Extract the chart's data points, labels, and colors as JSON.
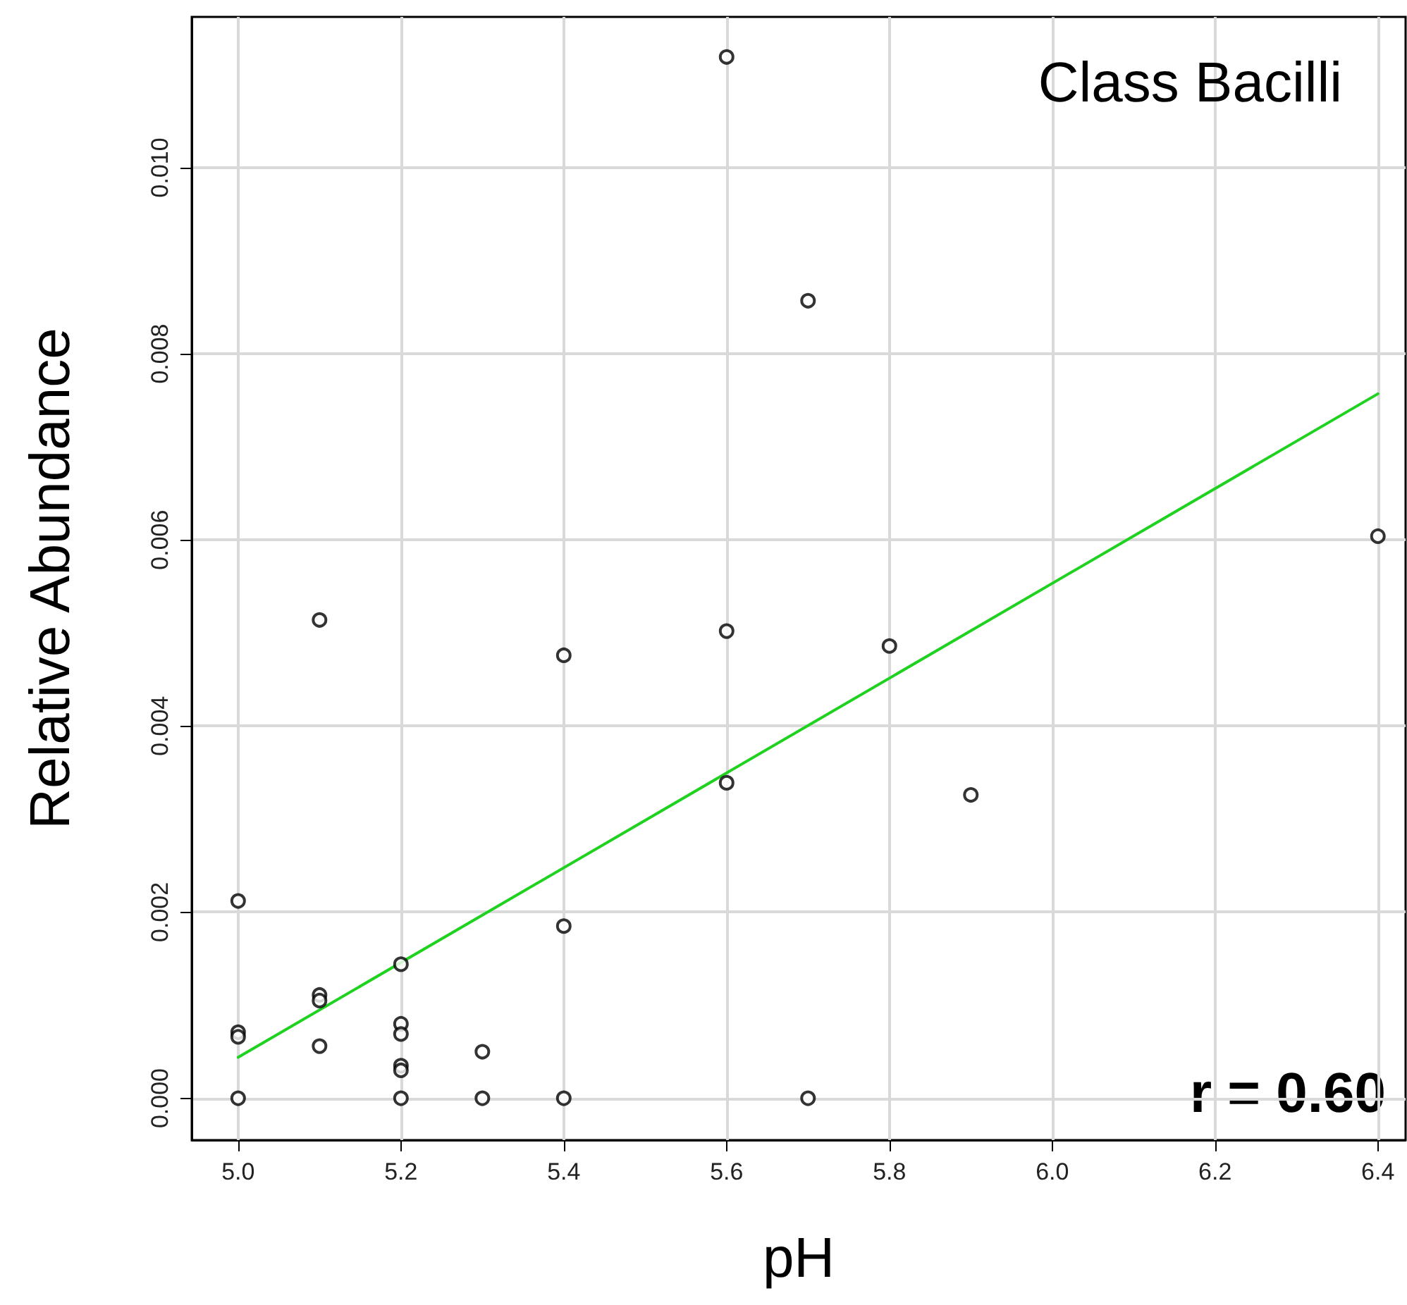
{
  "chart_data": {
    "type": "scatter",
    "title": "Class Bacilli",
    "xlabel": "pH",
    "ylabel": "Relative Abundance",
    "annotations": [
      "r = 0.60"
    ],
    "x": [
      5.6,
      5.7,
      6.4,
      5.1,
      5.6,
      5.8,
      5.4,
      5.6,
      5.9,
      5.0,
      5.4,
      5.2,
      5.1,
      5.1,
      5.0,
      5.0,
      5.1,
      5.2,
      5.2,
      5.2,
      5.2,
      5.3,
      5.0,
      5.2,
      5.3,
      5.4,
      5.7
    ],
    "series": [
      {
        "color": "#000000",
        "marker": "circle",
        "values": [
          0.01119,
          0.00857,
          0.00604,
          0.00514,
          0.00502,
          0.00486,
          0.00476,
          0.00339,
          0.00326,
          0.00212,
          0.00185,
          0.00144,
          0.00111,
          0.00105,
          0.00071,
          0.00066,
          0.00056,
          0.0008,
          0.00069,
          0.00035,
          0.0003,
          0.0005,
          0,
          0,
          0,
          0,
          0
        ]
      },
      {
        "type": "line",
        "color": "#1fd21f",
        "marker": "none",
        "line_style": "solid",
        "x": [
          5.0,
          6.4
        ],
        "values": [
          0.00044,
          0.00757
        ]
      }
    ],
    "xlim": [
      4.943,
      6.434
    ],
    "ylim": [
      -0.00045,
      0.01162
    ],
    "xticks": [
      {
        "value": 5.0,
        "label": "5.0"
      },
      {
        "value": 5.2,
        "label": "5.2"
      },
      {
        "value": 5.4,
        "label": "5.4"
      },
      {
        "value": 5.6,
        "label": "5.6"
      },
      {
        "value": 5.8,
        "label": "5.8"
      },
      {
        "value": 6.0,
        "label": "6.0"
      },
      {
        "value": 6.2,
        "label": "6.2"
      },
      {
        "value": 6.4,
        "label": "6.4"
      }
    ],
    "yticks": [
      {
        "value": 0,
        "label": "0.000"
      },
      {
        "value": 0.002,
        "label": "0.002"
      },
      {
        "value": 0.004,
        "label": "0.004"
      },
      {
        "value": 0.006,
        "label": "0.006"
      },
      {
        "value": 0.008,
        "label": "0.008"
      },
      {
        "value": 0.01,
        "label": "0.010"
      }
    ],
    "grid": true
  }
}
